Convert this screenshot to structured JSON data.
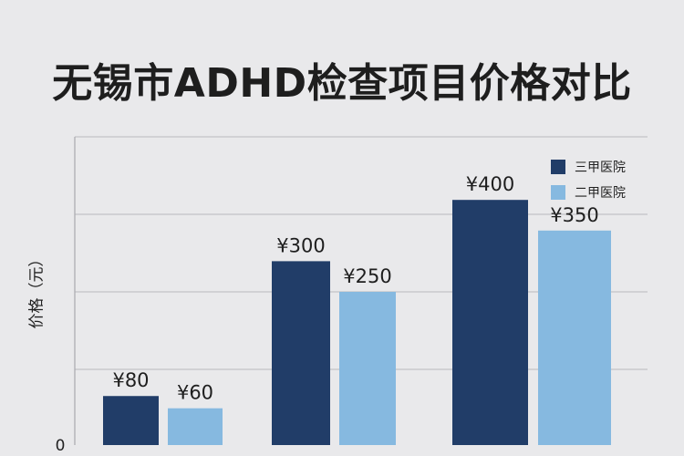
{
  "chart_data": {
    "type": "bar",
    "title": "无锡市ADHD检查项目价格对比",
    "ylabel": "价格（元）",
    "xlabel": "",
    "categories": [
      "",
      "",
      ""
    ],
    "series": [
      {
        "name": "三甲医院",
        "values": [
          80,
          300,
          400
        ],
        "labels": [
          "¥80",
          "¥300",
          "¥400"
        ],
        "color": "#213d68"
      },
      {
        "name": "二甲医院",
        "values": [
          60,
          250,
          350
        ],
        "labels": [
          "¥60",
          "¥250",
          "¥350"
        ],
        "color": "#86b9e0"
      }
    ],
    "y_tick_labels": [
      "0"
    ],
    "grid": true,
    "legend_position": "top-right"
  }
}
